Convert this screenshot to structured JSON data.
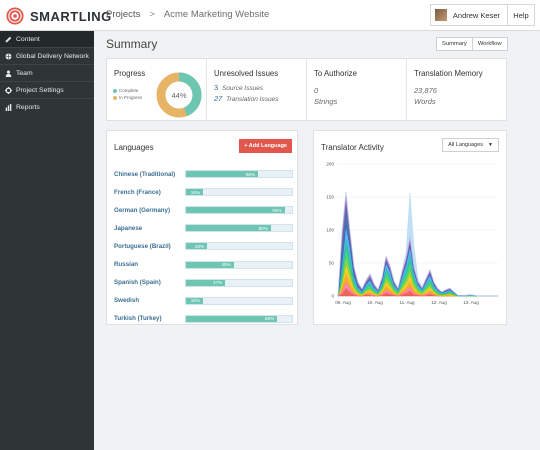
{
  "brand": {
    "name": "SMARTLING"
  },
  "breadcrumb": {
    "root": "Projects",
    "separator": ">",
    "current": "Acme Marketing Website"
  },
  "user": {
    "name": "Andrew Keser",
    "help_label": "Help"
  },
  "sidebar": {
    "items": [
      {
        "label": "Content",
        "icon": "pencil-icon",
        "active": true
      },
      {
        "label": "Global Delivery Network",
        "icon": "globe-icon"
      },
      {
        "label": "Team",
        "icon": "user-icon"
      },
      {
        "label": "Project Settings",
        "icon": "gear-icon"
      },
      {
        "label": "Reports",
        "icon": "bar-chart-icon"
      }
    ]
  },
  "page": {
    "title": "Summary",
    "view_tabs": [
      "Summary",
      "Workflow"
    ]
  },
  "stats": {
    "progress": {
      "title": "Progress",
      "percent": "44%",
      "complete_fraction": 0.44,
      "legend": [
        {
          "label": "Complete",
          "color": "#6cc6b2"
        },
        {
          "label": "In Progress",
          "color": "#e7b466"
        }
      ]
    },
    "unresolved": {
      "title": "Unresolved Issues",
      "source_count": "3",
      "source_label": "Source Issues",
      "translation_count": "27",
      "translation_label": "Translation Issues"
    },
    "authorize": {
      "title": "To Authorize",
      "count": "0",
      "label": "Strings"
    },
    "memory": {
      "title": "Translation Memory",
      "count": "23,876",
      "label": "Words"
    }
  },
  "languages": {
    "title": "Languages",
    "add_label": "+ Add Language",
    "items": [
      {
        "name": "Chinese (Traditional)",
        "percent": 68,
        "label": "68%"
      },
      {
        "name": "French (France)",
        "percent": 16,
        "label": "16%"
      },
      {
        "name": "German (Germany)",
        "percent": 93,
        "label": "93%"
      },
      {
        "name": "Japanese",
        "percent": 80,
        "label": "80%"
      },
      {
        "name": "Portuguese (Brazil)",
        "percent": 20,
        "label": "20%"
      },
      {
        "name": "Russian",
        "percent": 45,
        "label": "45%"
      },
      {
        "name": "Spanish (Spain)",
        "percent": 37,
        "label": "37%"
      },
      {
        "name": "Swedish",
        "percent": 16,
        "label": "16%"
      },
      {
        "name": "Turkish (Turkey)",
        "percent": 86,
        "label": "86%"
      }
    ]
  },
  "activity": {
    "title": "Translator Activity",
    "filter_label": "All Languages",
    "chart_data": {
      "type": "area",
      "stacked": true,
      "title": "Translator Activity",
      "xlabel": "",
      "ylabel": "",
      "ylim": [
        0,
        200
      ],
      "yticks": [
        0,
        50,
        100,
        150,
        200
      ],
      "x": [
        0,
        0.5,
        1,
        1.5,
        2,
        2.5,
        3,
        3.5,
        4,
        4.5,
        5,
        5.5,
        6,
        6.5,
        7,
        7.5,
        8,
        8.5,
        9,
        9.5,
        10,
        10.5,
        11,
        11.5,
        12,
        12.5,
        13,
        13.5,
        14,
        14.5,
        15,
        15.5,
        16,
        16.5,
        17,
        17.5,
        18,
        18.5,
        19,
        19.5,
        20
      ],
      "x_tick_labels": [
        {
          "x": 0,
          "label": "09. Aug"
        },
        {
          "x": 4,
          "label": "10. Aug"
        },
        {
          "x": 8,
          "label": "11. Aug"
        },
        {
          "x": 12,
          "label": "12. Aug"
        },
        {
          "x": 16,
          "label": "13. Aug"
        }
      ],
      "series_colors": [
        "#e74c3c",
        "#ff6fa0",
        "#f39c12",
        "#f1c40f",
        "#7ed321",
        "#2ecc71",
        "#1abc9c",
        "#3fa9f5",
        "#2c5aa0",
        "#9b59b6",
        "#c39bd3",
        "#aed6f1"
      ],
      "series": [
        {
          "values": [
            0,
            3,
            12,
            6,
            2,
            0,
            0,
            2,
            1,
            0,
            0,
            1,
            5,
            3,
            1,
            0,
            2,
            4,
            8,
            2,
            1,
            0,
            1,
            3,
            1,
            0,
            0,
            0,
            0,
            0,
            0,
            0,
            0,
            0,
            0,
            0,
            0,
            0,
            0,
            0,
            0
          ]
        },
        {
          "values": [
            0,
            4,
            10,
            5,
            2,
            1,
            0,
            1,
            2,
            1,
            0,
            2,
            4,
            3,
            1,
            1,
            2,
            4,
            6,
            3,
            1,
            1,
            2,
            2,
            1,
            0,
            0,
            0,
            0,
            0,
            0,
            0,
            0,
            0,
            0,
            0,
            0,
            0,
            0,
            0,
            0
          ]
        },
        {
          "values": [
            0,
            5,
            12,
            8,
            3,
            1,
            1,
            2,
            3,
            1,
            1,
            2,
            6,
            4,
            2,
            1,
            3,
            5,
            8,
            4,
            2,
            1,
            2,
            4,
            2,
            1,
            0,
            1,
            1,
            0,
            0,
            0,
            0,
            0,
            0,
            0,
            0,
            0,
            0,
            0,
            0
          ]
        },
        {
          "values": [
            0,
            6,
            14,
            10,
            4,
            2,
            1,
            2,
            3,
            2,
            1,
            3,
            7,
            5,
            2,
            1,
            4,
            6,
            10,
            5,
            2,
            1,
            3,
            4,
            2,
            1,
            1,
            1,
            2,
            1,
            0,
            0,
            0,
            0,
            0,
            0,
            0,
            0,
            0,
            0,
            0
          ]
        },
        {
          "values": [
            0,
            6,
            12,
            9,
            4,
            2,
            1,
            2,
            3,
            2,
            1,
            3,
            6,
            5,
            3,
            1,
            4,
            6,
            9,
            5,
            3,
            2,
            3,
            4,
            2,
            1,
            1,
            1,
            1,
            1,
            0,
            0,
            0,
            0,
            0,
            0,
            0,
            0,
            0,
            0,
            0
          ]
        },
        {
          "values": [
            0,
            8,
            15,
            12,
            5,
            2,
            1,
            3,
            4,
            2,
            1,
            3,
            8,
            6,
            3,
            2,
            5,
            8,
            12,
            6,
            3,
            2,
            3,
            5,
            3,
            2,
            1,
            1,
            2,
            1,
            0,
            0,
            0,
            1,
            0,
            0,
            0,
            0,
            0,
            0,
            0
          ]
        },
        {
          "values": [
            0,
            6,
            12,
            9,
            4,
            2,
            1,
            2,
            3,
            2,
            1,
            3,
            6,
            5,
            2,
            1,
            4,
            6,
            10,
            5,
            2,
            1,
            3,
            4,
            2,
            1,
            1,
            1,
            1,
            1,
            0,
            0,
            0,
            0,
            0,
            0,
            0,
            0,
            0,
            0,
            0
          ]
        },
        {
          "values": [
            0,
            10,
            20,
            14,
            6,
            3,
            2,
            3,
            5,
            3,
            2,
            4,
            8,
            6,
            3,
            2,
            5,
            8,
            12,
            6,
            3,
            2,
            4,
            6,
            3,
            2,
            1,
            2,
            2,
            1,
            1,
            1,
            1,
            1,
            1,
            0,
            0,
            0,
            0,
            0,
            0
          ]
        },
        {
          "values": [
            0,
            30,
            33,
            15,
            8,
            4,
            2,
            3,
            4,
            2,
            1,
            3,
            4,
            3,
            2,
            1,
            3,
            4,
            5,
            3,
            2,
            1,
            2,
            3,
            2,
            1,
            1,
            1,
            1,
            1,
            0,
            0,
            0,
            0,
            0,
            0,
            0,
            0,
            0,
            0,
            0
          ]
        },
        {
          "values": [
            0,
            12,
            10,
            6,
            4,
            2,
            1,
            2,
            3,
            2,
            1,
            2,
            4,
            3,
            2,
            1,
            3,
            4,
            6,
            3,
            2,
            1,
            2,
            3,
            2,
            1,
            0,
            1,
            1,
            0,
            0,
            0,
            0,
            0,
            0,
            0,
            0,
            0,
            0,
            0,
            0
          ]
        },
        {
          "values": [
            0,
            8,
            8,
            5,
            3,
            2,
            1,
            2,
            3,
            2,
            1,
            2,
            3,
            3,
            2,
            1,
            3,
            3,
            5,
            2,
            1,
            1,
            2,
            2,
            1,
            1,
            0,
            1,
            1,
            0,
            0,
            0,
            0,
            0,
            0,
            0,
            0,
            0,
            0,
            0,
            0
          ]
        },
        {
          "values": [
            0,
            0,
            0,
            0,
            0,
            0,
            0,
            0,
            0,
            0,
            0,
            0,
            0,
            0,
            0,
            0,
            0,
            8,
            65,
            30,
            5,
            0,
            0,
            0,
            0,
            0,
            0,
            0,
            0,
            0,
            0,
            0,
            0,
            0,
            0,
            0,
            0,
            0,
            0,
            0,
            0
          ]
        }
      ]
    }
  }
}
